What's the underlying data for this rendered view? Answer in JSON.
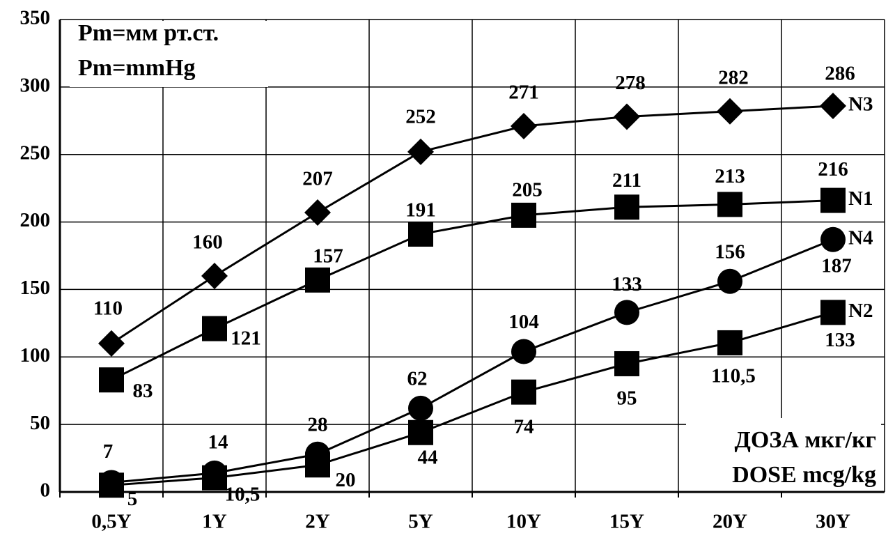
{
  "chart_data": {
    "type": "line",
    "categories": [
      "0,5Y",
      "1Y",
      "2Y",
      "5Y",
      "10Y",
      "15Y",
      "20Y",
      "30Y"
    ],
    "series": [
      {
        "name": "N3",
        "color": "#000000",
        "marker": "diamond",
        "values": [
          110,
          160,
          207,
          252,
          271,
          278,
          282,
          286
        ]
      },
      {
        "name": "N1",
        "color": "#000000",
        "marker": "square",
        "values": [
          83,
          121,
          157,
          191,
          205,
          211,
          213,
          216
        ]
      },
      {
        "name": "N4",
        "color": "#000000",
        "marker": "circle",
        "values": [
          7,
          14,
          28,
          62,
          104,
          133,
          156,
          187
        ]
      },
      {
        "name": "N2",
        "color": "#000000",
        "marker": "square",
        "values": [
          5,
          10.5,
          20,
          44,
          74,
          95,
          110.5,
          133
        ],
        "value_labels": [
          "5",
          "10,5",
          "20",
          "44",
          "74",
          "95",
          "110,5",
          "133"
        ]
      }
    ],
    "annotations": [
      "Pm=мм рт.ст.",
      "Pm=mmHg",
      "ДОЗА мкг/кг",
      "DOSE mcg/kg"
    ],
    "ylim": [
      0,
      350
    ],
    "yticks": [
      0,
      50,
      100,
      150,
      200,
      250,
      300,
      350
    ],
    "grid": true
  }
}
